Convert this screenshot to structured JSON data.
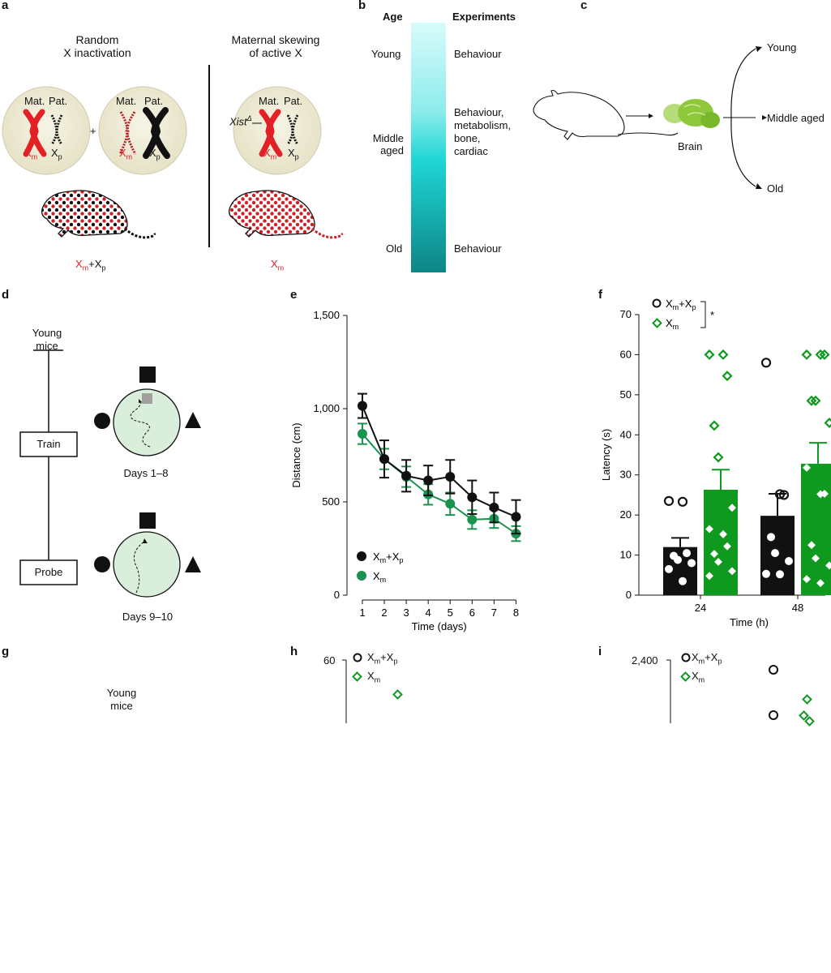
{
  "panel_labels": {
    "a": "a",
    "b": "b",
    "c": "c",
    "d": "d",
    "e": "e",
    "f": "f",
    "g": "g",
    "h": "h",
    "i": "i"
  },
  "panel_a": {
    "left_title_1": "Random",
    "left_title_2": "X inactivation",
    "right_title_1": "Maternal skewing",
    "right_title_2": "of active X",
    "mat": "Mat.",
    "pat": "Pat.",
    "plus": "+",
    "xist": "Xist",
    "xist_sup": "Δ",
    "xm_x": "X",
    "xm_sub": "m",
    "xp_x": "X",
    "xp_sub": "p",
    "mouse_label_plus": "+",
    "red": "#e32026"
  },
  "panel_b": {
    "age_header": "Age",
    "exp_header": "Experiments",
    "ages": [
      "Young",
      "Middle",
      "aged",
      "Old"
    ],
    "experiments": [
      "Behaviour",
      "Behaviour,",
      "metabolism,",
      "bone,",
      "cardiac",
      "Behaviour"
    ],
    "gradient_colors": [
      "#d8fbfb",
      "#1fd6d6",
      "#0d8585"
    ]
  },
  "panel_c": {
    "brain": "Brain",
    "outcomes": [
      "Young",
      "Middle aged",
      "Old"
    ]
  },
  "panel_d": {
    "top_label_1": "Young",
    "top_label_2": "mice",
    "train": "Train",
    "probe": "Probe",
    "days_train": "Days 1–8",
    "days_probe": "Days 9–10",
    "arena_color": "#d9eedb"
  },
  "panel_e": {
    "ylabel": "Distance (cm)",
    "xlabel": "Time (days)",
    "legend": [
      {
        "x": "X",
        "sub": "m",
        "x2": "+X",
        "sub2": "p"
      },
      {
        "x": "X",
        "sub": "m"
      }
    ],
    "yticks": [
      "0",
      "500",
      "1,000",
      "1,500"
    ]
  },
  "panel_f": {
    "ylabel": "Latency (s)",
    "xlabel": "Time (h)",
    "xticks": [
      "24",
      "48"
    ],
    "yticks": [
      "0",
      "10",
      "20",
      "30",
      "40",
      "50",
      "60",
      "70"
    ],
    "sig": "*"
  },
  "panel_g": {
    "label_1": "Young",
    "label_2": "mice"
  },
  "panel_h": {
    "ytick": "60"
  },
  "panel_i": {
    "ytick": "2,400"
  },
  "colors": {
    "black": "#111111",
    "green_e": "#1a9350",
    "green_f": "#0f9a1f",
    "red": "#e32026"
  },
  "chart_data": [
    {
      "type": "line",
      "panel": "e",
      "xlabel": "Time (days)",
      "ylabel": "Distance (cm)",
      "x": [
        1,
        2,
        3,
        4,
        5,
        6,
        7,
        8
      ],
      "xlim": [
        0.3,
        8.5
      ],
      "ylim": [
        0,
        1500
      ],
      "series": [
        {
          "name": "Xm+Xp",
          "color": "#111111",
          "values": [
            1015,
            730,
            640,
            615,
            635,
            525,
            470,
            420
          ],
          "err": [
            65,
            100,
            85,
            80,
            90,
            90,
            80,
            90
          ]
        },
        {
          "name": "Xm",
          "color": "#1a9350",
          "values": [
            865,
            730,
            635,
            540,
            490,
            405,
            410,
            330
          ],
          "err": [
            55,
            55,
            55,
            55,
            60,
            50,
            50,
            40
          ]
        }
      ]
    },
    {
      "type": "bar",
      "panel": "f",
      "xlabel": "Time (h)",
      "ylabel": "Latency (s)",
      "categories": [
        "24",
        "48"
      ],
      "ylim": [
        0,
        70
      ],
      "series": [
        {
          "name": "Xm+Xp",
          "color": "#111111",
          "values": [
            12,
            19.8
          ],
          "err": [
            2.3,
            5.5
          ],
          "points": [
            [
              23.5,
              23.3,
              10.5,
              9.8,
              8.8,
              8,
              6.5,
              3.5
            ],
            [
              58,
              25.2,
              25,
              14.5,
              10.5,
              8.5,
              5.3,
              5.2
            ]
          ]
        },
        {
          "name": "Xm",
          "color": "#0f9a1f",
          "values": [
            26.3,
            32.8
          ],
          "err": [
            5,
            5.2
          ],
          "points": [
            [
              60,
              60,
              54.7,
              42.3,
              34.4,
              21.8,
              16.5,
              15.2,
              12.2,
              10.3,
              8.3,
              6,
              4.8
            ],
            [
              60,
              60,
              60,
              48.5,
              48.5,
              43,
              31.8,
              25.2,
              25.3,
              12.5,
              9.2,
              7.4,
              4,
              3
            ]
          ]
        }
      ]
    },
    {
      "type": "scatter",
      "panel": "h",
      "yticks": [
        60
      ],
      "series": [
        {
          "name": "Xm+Xp",
          "values": []
        },
        {
          "name": "Xm",
          "values": []
        }
      ]
    },
    {
      "type": "scatter",
      "panel": "i",
      "yticks": [
        2400
      ],
      "series": [
        {
          "name": "Xm+Xp",
          "values": []
        },
        {
          "name": "Xm",
          "values": []
        }
      ]
    }
  ]
}
